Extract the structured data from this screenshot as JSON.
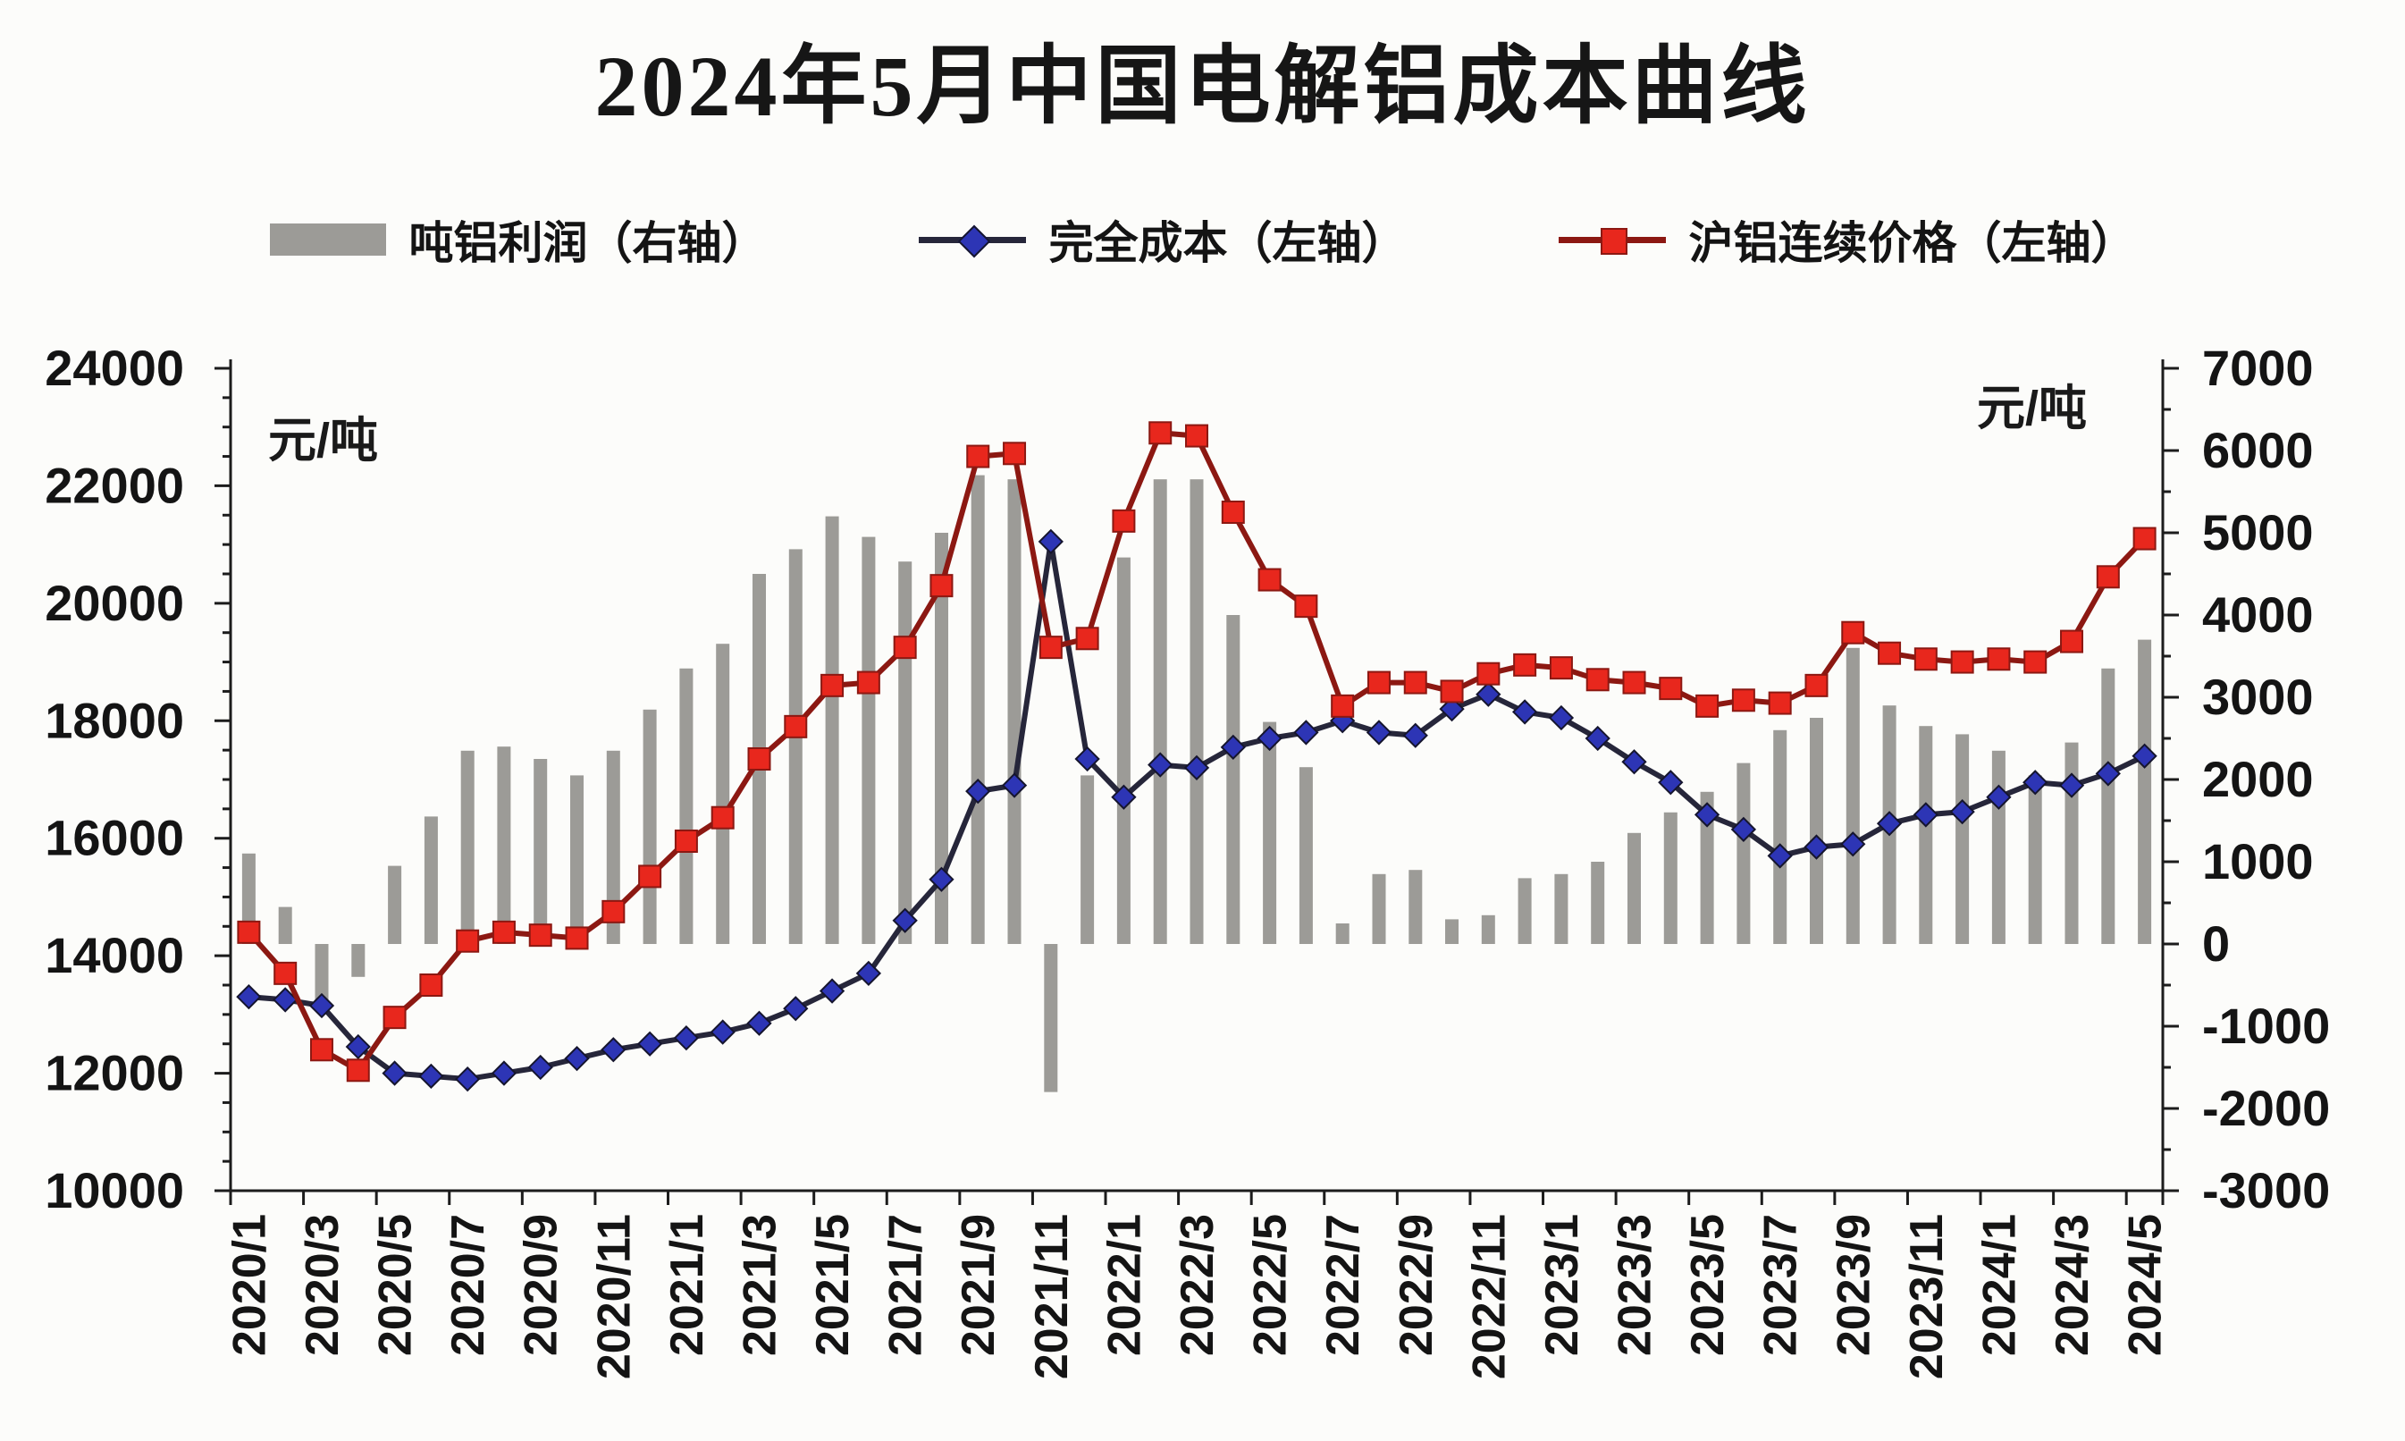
{
  "title": "2024年5月中国电解铝成本曲线",
  "left_axis_unit": "元/吨",
  "right_axis_unit": "元/吨",
  "legend": [
    {
      "label": "吨铝利润（右轴）",
      "type": "bar",
      "color": "#9c9b97"
    },
    {
      "label": "完全成本（左轴）",
      "type": "line-diamond",
      "line_color": "#26263a",
      "marker_color": "#2d35b5"
    },
    {
      "label": "沪铝连续价格（左轴）",
      "type": "line-square",
      "line_color": "#8c1812",
      "marker_color": "#e8271d"
    }
  ],
  "chart_data": {
    "type": "combo-bar-line",
    "grid": false,
    "legend_position": "top",
    "x": [
      "2020/1",
      "2020/2",
      "2020/3",
      "2020/4",
      "2020/5",
      "2020/6",
      "2020/7",
      "2020/8",
      "2020/9",
      "2020/10",
      "2020/11",
      "2020/12",
      "2021/1",
      "2021/2",
      "2021/3",
      "2021/4",
      "2021/5",
      "2021/6",
      "2021/7",
      "2021/8",
      "2021/9",
      "2021/10",
      "2021/11",
      "2021/12",
      "2022/1",
      "2022/2",
      "2022/3",
      "2022/4",
      "2022/5",
      "2022/6",
      "2022/7",
      "2022/8",
      "2022/9",
      "2022/10",
      "2022/11",
      "2022/12",
      "2023/1",
      "2023/2",
      "2023/3",
      "2023/4",
      "2023/5",
      "2023/6",
      "2023/7",
      "2023/8",
      "2023/9",
      "2023/10",
      "2023/11",
      "2023/12",
      "2024/1",
      "2024/2",
      "2024/3",
      "2024/4",
      "2024/5"
    ],
    "x_tick_labels": [
      "2020/1",
      "2020/3",
      "2020/5",
      "2020/7",
      "2020/9",
      "2020/11",
      "2021/1",
      "2021/3",
      "2021/5",
      "2021/7",
      "2021/9",
      "2021/11",
      "2022/1",
      "2022/3",
      "2022/5",
      "2022/7",
      "2022/9",
      "2022/11",
      "2023/1",
      "2023/3",
      "2023/5",
      "2023/7",
      "2023/9",
      "2023/11",
      "2024/1",
      "2024/3",
      "2024/5"
    ],
    "left_axis": {
      "min": 10000,
      "max": 24000,
      "step": 2000,
      "tick_labels": [
        "10000",
        "12000",
        "14000",
        "16000",
        "18000",
        "20000",
        "22000",
        "24000"
      ]
    },
    "right_axis": {
      "min": -3000,
      "max": 7000,
      "step": 1000,
      "tick_labels": [
        "-3000",
        "-2000",
        "-1000",
        "0",
        "1000",
        "2000",
        "3000",
        "4000",
        "5000",
        "6000",
        "7000"
      ]
    },
    "series": [
      {
        "name": "吨铝利润（右轴）",
        "type": "bar",
        "axis": "right",
        "color": "#9c9b97",
        "values": [
          1100,
          450,
          -750,
          -400,
          950,
          1550,
          2350,
          2400,
          2250,
          2050,
          2350,
          2850,
          3350,
          3650,
          4500,
          4800,
          5200,
          4950,
          4650,
          5000,
          5700,
          5650,
          -1800,
          2050,
          4700,
          5650,
          5650,
          4000,
          2700,
          2150,
          250,
          850,
          900,
          300,
          350,
          800,
          850,
          1000,
          1350,
          1600,
          1850,
          2200,
          2600,
          2750,
          3600,
          2900,
          2650,
          2550,
          2350,
          2050,
          2450,
          3350,
          3700
        ]
      },
      {
        "name": "完全成本（左轴）",
        "type": "line",
        "axis": "left",
        "line_color": "#26263a",
        "marker_color": "#2d35b5",
        "marker": "diamond",
        "values": [
          13300,
          13250,
          13150,
          12450,
          12000,
          11950,
          11900,
          12000,
          12100,
          12250,
          12400,
          12500,
          12600,
          12700,
          12850,
          13100,
          13400,
          13700,
          14600,
          15300,
          16800,
          16900,
          21050,
          17350,
          16700,
          17250,
          17200,
          17550,
          17700,
          17800,
          18000,
          17800,
          17750,
          18200,
          18450,
          18150,
          18050,
          17700,
          17300,
          16950,
          16400,
          16150,
          15700,
          15850,
          15900,
          16250,
          16400,
          16450,
          16700,
          16950,
          16900,
          17100,
          17400
        ]
      },
      {
        "name": "沪铝连续价格（左轴）",
        "type": "line",
        "axis": "left",
        "line_color": "#8c1812",
        "marker_color": "#e8271d",
        "marker": "square",
        "values": [
          14400,
          13700,
          12400,
          12050,
          12950,
          13500,
          14250,
          14400,
          14350,
          14300,
          14750,
          15350,
          15950,
          16350,
          17350,
          17900,
          18600,
          18650,
          19250,
          20300,
          22500,
          22550,
          19250,
          19400,
          21400,
          22900,
          22850,
          21550,
          20400,
          19950,
          18250,
          18650,
          18650,
          18500,
          18800,
          18950,
          18900,
          18700,
          18650,
          18550,
          18250,
          18350,
          18300,
          18600,
          19500,
          19150,
          19050,
          19000,
          19050,
          19000,
          19350,
          20450,
          21100
        ]
      }
    ]
  }
}
